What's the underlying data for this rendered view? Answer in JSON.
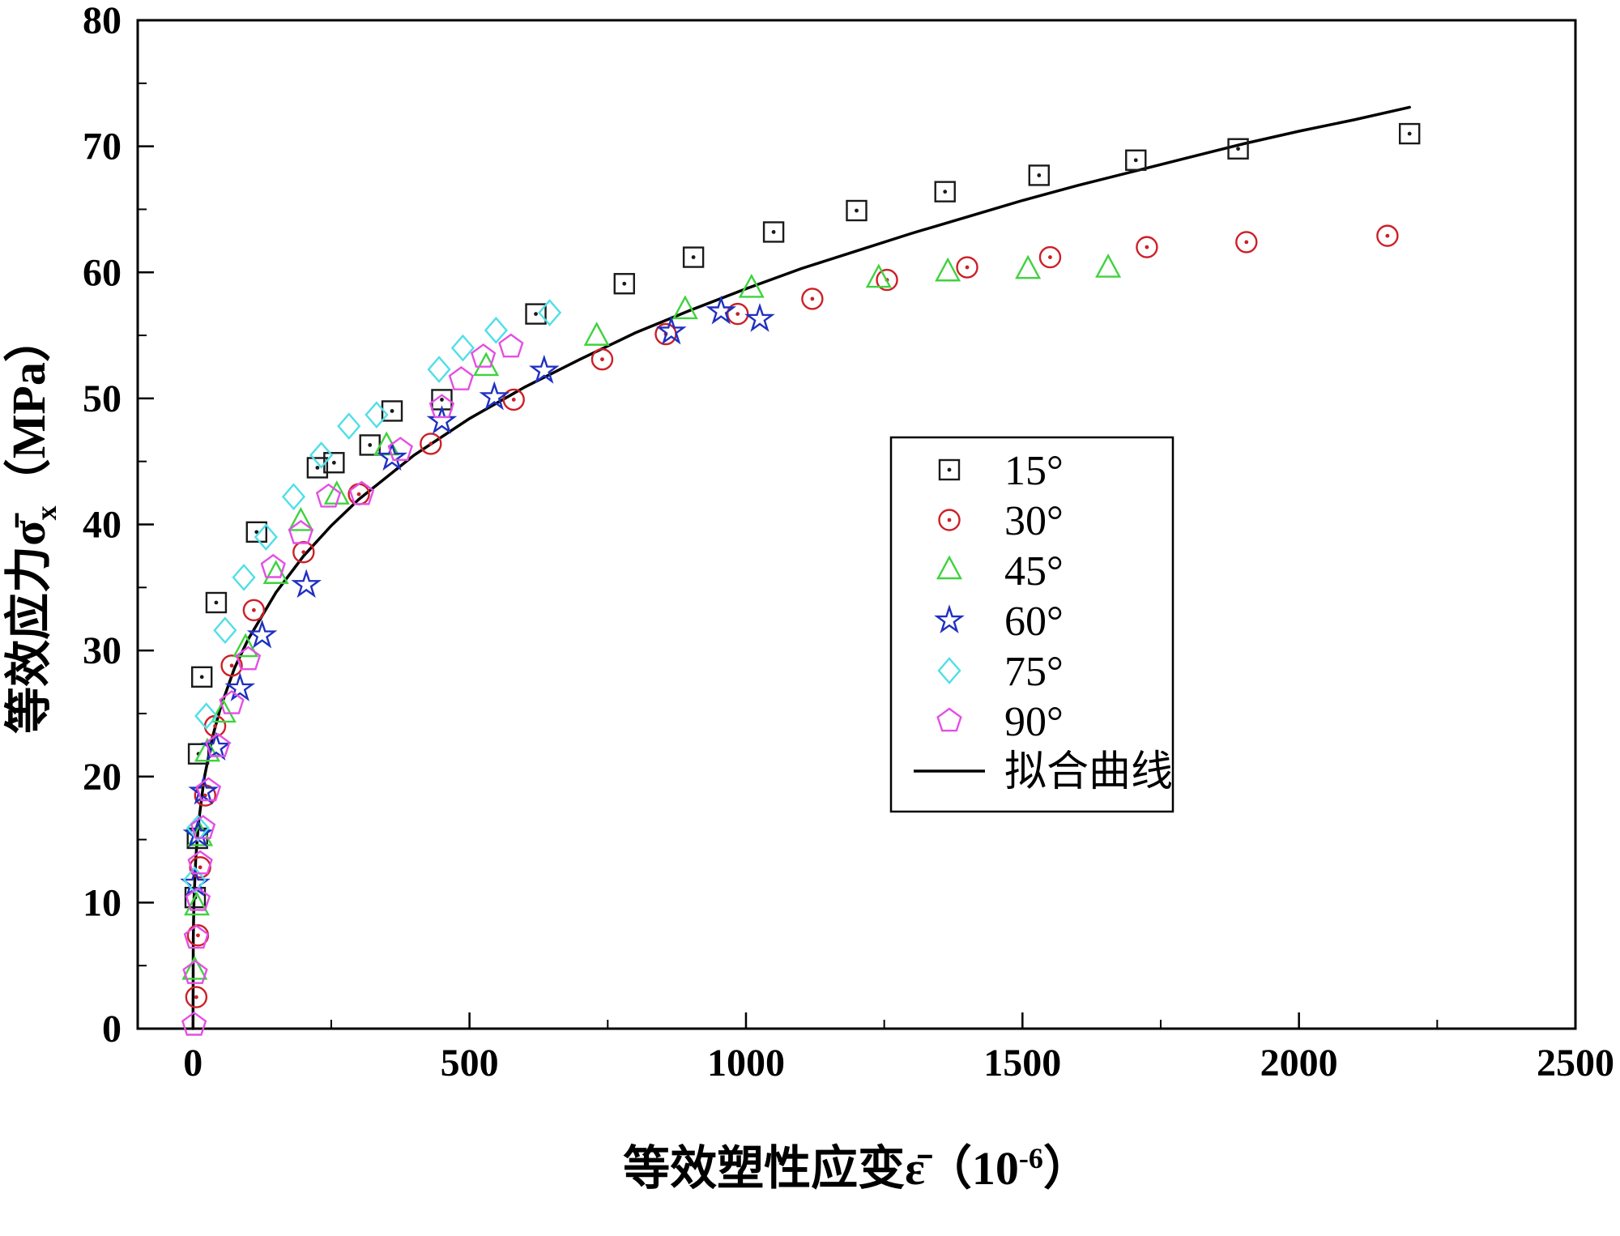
{
  "chart_data": {
    "type": "scatter",
    "title": "",
    "xlabel": {
      "text": "等效塑性应变",
      "symbol": "ε̄",
      "unit_prefix": "（10",
      "unit_sup": "-6",
      "unit_suffix": "）"
    },
    "ylabel": {
      "text": "等效应力",
      "symbol": "σ̄",
      "symbol_sub": "x",
      "unit": "（MPa）"
    },
    "xlim": [
      -100,
      2500
    ],
    "ylim": [
      0,
      80
    ],
    "xticks": [
      0,
      500,
      1000,
      1500,
      2000,
      2500
    ],
    "yticks": [
      0,
      10,
      20,
      30,
      40,
      50,
      60,
      70,
      80
    ],
    "x_minor_ticks": [
      250,
      750,
      1250,
      1750,
      2250
    ],
    "y_minor_ticks": [
      5,
      15,
      25,
      35,
      45,
      55,
      65,
      75
    ],
    "grid": false,
    "legend_position": "right-center",
    "frame_color": "#000000",
    "series": [
      {
        "name": "15°",
        "marker": "square-dot",
        "color": "#1a1a1a",
        "points": [
          [
            4,
            10.4
          ],
          [
            8,
            15.1
          ],
          [
            10,
            21.8
          ],
          [
            16,
            27.9
          ],
          [
            42,
            33.8
          ],
          [
            115,
            39.4
          ],
          [
            225,
            44.5
          ],
          [
            255,
            44.9
          ],
          [
            320,
            46.3
          ],
          [
            360,
            49.0
          ],
          [
            450,
            49.9
          ],
          [
            620,
            56.7
          ],
          [
            780,
            59.1
          ],
          [
            905,
            61.2
          ],
          [
            1050,
            63.2
          ],
          [
            1200,
            64.9
          ],
          [
            1360,
            66.4
          ],
          [
            1530,
            67.7
          ],
          [
            1705,
            68.9
          ],
          [
            1890,
            69.8
          ],
          [
            2200,
            71.0
          ]
        ]
      },
      {
        "name": "30°",
        "marker": "circle-dot",
        "color": "#cc2027",
        "points": [
          [
            6,
            2.5
          ],
          [
            9,
            7.4
          ],
          [
            13,
            12.8
          ],
          [
            22,
            18.5
          ],
          [
            40,
            24.0
          ],
          [
            70,
            28.8
          ],
          [
            110,
            33.2
          ],
          [
            200,
            37.8
          ],
          [
            300,
            42.4
          ],
          [
            430,
            46.4
          ],
          [
            580,
            49.9
          ],
          [
            740,
            53.1
          ],
          [
            855,
            55.1
          ],
          [
            985,
            56.7
          ],
          [
            1120,
            57.9
          ],
          [
            1255,
            59.4
          ],
          [
            1400,
            60.4
          ],
          [
            1550,
            61.2
          ],
          [
            1725,
            62.0
          ],
          [
            1905,
            62.4
          ],
          [
            2160,
            62.9
          ]
        ]
      },
      {
        "name": "45°",
        "marker": "triangle",
        "color": "#3fd23f",
        "points": [
          [
            3,
            4.6
          ],
          [
            7,
            9.7
          ],
          [
            13,
            15.2
          ],
          [
            26,
            21.9
          ],
          [
            55,
            25.0
          ],
          [
            95,
            30.2
          ],
          [
            150,
            36.0
          ],
          [
            195,
            40.2
          ],
          [
            260,
            42.3
          ],
          [
            350,
            46.2
          ],
          [
            530,
            52.5
          ],
          [
            730,
            54.9
          ],
          [
            890,
            57.0
          ],
          [
            1010,
            58.7
          ],
          [
            1240,
            59.5
          ],
          [
            1365,
            60.0
          ],
          [
            1510,
            60.2
          ],
          [
            1655,
            60.3
          ]
        ]
      },
      {
        "name": "60°",
        "marker": "star",
        "color": "#2030c0",
        "points": [
          [
            4,
            11.5
          ],
          [
            9,
            15.4
          ],
          [
            19,
            18.8
          ],
          [
            42,
            22.3
          ],
          [
            85,
            27.0
          ],
          [
            125,
            31.2
          ],
          [
            205,
            35.2
          ],
          [
            360,
            45.3
          ],
          [
            450,
            48.2
          ],
          [
            545,
            50.1
          ],
          [
            635,
            52.2
          ],
          [
            865,
            55.3
          ],
          [
            955,
            56.9
          ],
          [
            1025,
            56.3
          ]
        ]
      },
      {
        "name": "75°",
        "marker": "diamond",
        "color": "#50dfe8",
        "points": [
          [
            3,
            11.8
          ],
          [
            9,
            15.9
          ],
          [
            24,
            24.8
          ],
          [
            58,
            31.6
          ],
          [
            92,
            35.8
          ],
          [
            132,
            39.0
          ],
          [
            182,
            42.2
          ],
          [
            232,
            45.5
          ],
          [
            282,
            47.8
          ],
          [
            332,
            48.7
          ],
          [
            445,
            52.3
          ],
          [
            488,
            54.0
          ],
          [
            548,
            55.4
          ],
          [
            645,
            56.8
          ]
        ]
      },
      {
        "name": "90°",
        "marker": "pentagon",
        "color": "#e44fe4",
        "points": [
          [
            2,
            0.3
          ],
          [
            4,
            4.4
          ],
          [
            6,
            7.2
          ],
          [
            9,
            10.2
          ],
          [
            13,
            13.1
          ],
          [
            18,
            15.9
          ],
          [
            28,
            18.9
          ],
          [
            45,
            22.4
          ],
          [
            70,
            25.8
          ],
          [
            100,
            29.3
          ],
          [
            145,
            36.6
          ],
          [
            195,
            39.3
          ],
          [
            245,
            42.2
          ],
          [
            305,
            42.4
          ],
          [
            375,
            45.9
          ],
          [
            450,
            49.3
          ],
          [
            485,
            51.5
          ],
          [
            525,
            53.3
          ],
          [
            575,
            54.1
          ]
        ]
      }
    ],
    "fit_curve": {
      "name": "拟合曲线",
      "color": "#000000",
      "points": [
        [
          0,
          0
        ],
        [
          0.5,
          7.1
        ],
        [
          1,
          8.6
        ],
        [
          2,
          10.4
        ],
        [
          5,
          13.5
        ],
        [
          10,
          16.3
        ],
        [
          20,
          19.8
        ],
        [
          35,
          23.1
        ],
        [
          50,
          25.5
        ],
        [
          75,
          28.6
        ],
        [
          100,
          30.9
        ],
        [
          150,
          34.6
        ],
        [
          200,
          37.5
        ],
        [
          250,
          39.9
        ],
        [
          300,
          42.0
        ],
        [
          400,
          45.5
        ],
        [
          500,
          48.4
        ],
        [
          600,
          50.9
        ],
        [
          700,
          53.1
        ],
        [
          800,
          55.2
        ],
        [
          900,
          57.0
        ],
        [
          1000,
          58.7
        ],
        [
          1100,
          60.3
        ],
        [
          1200,
          61.7
        ],
        [
          1300,
          63.1
        ],
        [
          1400,
          64.4
        ],
        [
          1500,
          65.7
        ],
        [
          1600,
          66.9
        ],
        [
          1700,
          68.0
        ],
        [
          1800,
          69.1
        ],
        [
          1900,
          70.2
        ],
        [
          2000,
          71.2
        ],
        [
          2100,
          72.1
        ],
        [
          2200,
          73.1
        ]
      ]
    }
  }
}
